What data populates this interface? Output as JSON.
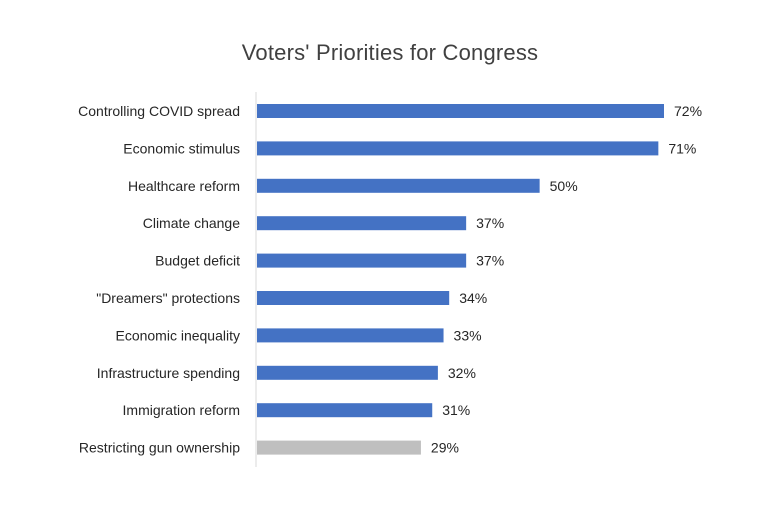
{
  "chart_data": {
    "type": "bar",
    "orientation": "horizontal",
    "title": "Voters' Priorities for Congress",
    "xlabel": "",
    "ylabel": "",
    "xlim": [
      0,
      80
    ],
    "grid": false,
    "legend": "none",
    "value_suffix": "%",
    "categories": [
      "Controlling COVID spread",
      "Economic stimulus",
      "Healthcare reform",
      "Climate change",
      "Budget deficit",
      "\"Dreamers\" protections",
      "Economic inequality",
      "Infrastructure spending",
      "Immigration reform",
      "Restricting gun ownership"
    ],
    "values": [
      72,
      71,
      50,
      37,
      37,
      34,
      33,
      32,
      31,
      29
    ],
    "data_labels": [
      "72%",
      "71%",
      "50%",
      "37%",
      "37%",
      "34%",
      "33%",
      "32%",
      "31%",
      "29%"
    ],
    "bar_colors": [
      "#4472C4",
      "#4472C4",
      "#4472C4",
      "#4472C4",
      "#4472C4",
      "#4472C4",
      "#4472C4",
      "#4472C4",
      "#4472C4",
      "#BFBFBF"
    ],
    "label_color": "#262626",
    "axis_color": "#D9D9D9"
  }
}
